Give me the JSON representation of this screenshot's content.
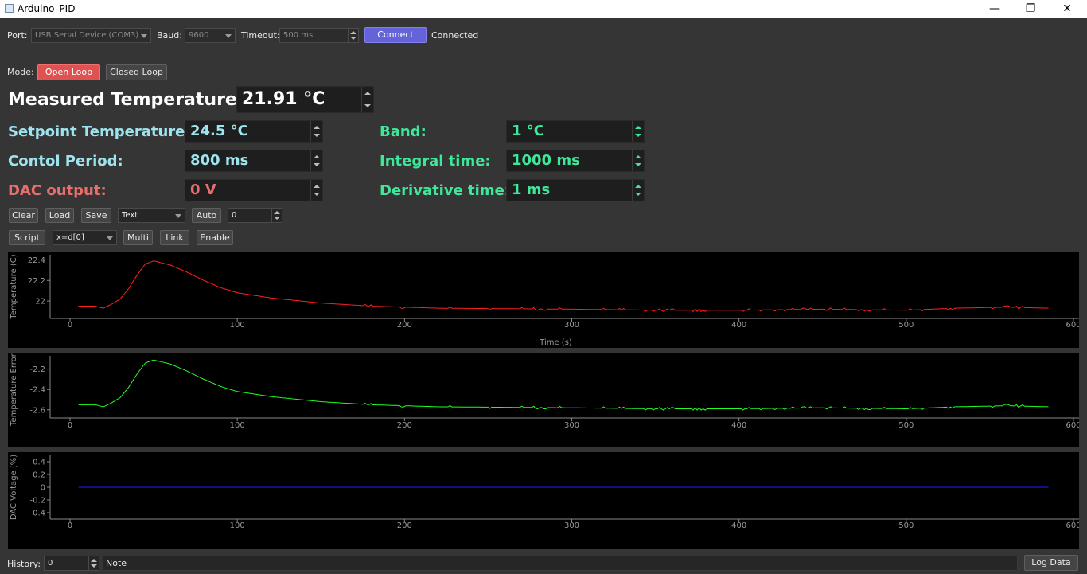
{
  "window": {
    "title": "Arduino_PID",
    "minimize": "—",
    "restore": "❐",
    "close": "✕"
  },
  "connection": {
    "port_label": "Port:",
    "port_value": "USB Serial Device (COM3)",
    "baud_label": "Baud:",
    "baud_value": "9600",
    "timeout_label": "Timeout:",
    "timeout_value": "500 ms",
    "connect_label": "Connect",
    "status": "Connected"
  },
  "mode": {
    "label": "Mode:",
    "open_loop": "Open Loop",
    "closed_loop": "Closed Loop"
  },
  "readouts": {
    "measured_label": "Measured Temperature:",
    "measured_value": "21.91 °C",
    "setpoint_label": "Setpoint Temperature:",
    "setpoint_value": "24.5 °C",
    "period_label": "Contol Period:",
    "period_value": "800 ms",
    "dac_label": "DAC output:",
    "dac_value": "0 V",
    "band_label": "Band:",
    "band_value": "1 °C",
    "integral_label": "Integral time:",
    "integral_value": "1000 ms",
    "derivative_label": "Derivative time:",
    "derivative_value": "1 ms"
  },
  "toolbar": {
    "clear": "Clear",
    "load": "Load",
    "save": "Save",
    "format": "Text",
    "auto": "Auto",
    "auto_value": "0",
    "script": "Script",
    "expression": "x=d[0]",
    "multi": "Multi",
    "link": "Link",
    "enable": "Enable"
  },
  "footer": {
    "history_label": "History:",
    "history_value": "0",
    "note": "Note",
    "log_data": "Log Data"
  },
  "colors": {
    "temperature": "#ff2020",
    "error": "#20ff20",
    "dac": "#2020ff",
    "connect": "#6464d8",
    "open_loop": "#e05252"
  },
  "chart_data": [
    {
      "type": "line",
      "ylabel": "Temperature (C)",
      "xlabel": "Time (s)",
      "xlim": [
        0,
        600
      ],
      "ylim": [
        21.83,
        22.45
      ],
      "x_ticks": [
        "0",
        "100",
        "200",
        "300",
        "400",
        "500",
        "600"
      ],
      "y_ticks": [
        "22.4",
        "22.2",
        "22"
      ],
      "y_tick_values": [
        22.4,
        22.2,
        22.0
      ],
      "color": "#ff2020",
      "x": [
        5,
        15,
        20,
        25,
        30,
        35,
        40,
        45,
        50,
        60,
        70,
        80,
        90,
        100,
        120,
        150,
        180,
        220,
        300,
        350,
        400,
        450,
        500,
        530,
        560,
        585
      ],
      "y": [
        21.95,
        21.95,
        21.93,
        21.97,
        22.02,
        22.12,
        22.25,
        22.36,
        22.39,
        22.35,
        22.28,
        22.2,
        22.13,
        22.08,
        22.03,
        21.98,
        21.95,
        21.93,
        21.92,
        21.91,
        21.91,
        21.92,
        21.91,
        21.93,
        21.94,
        21.93
      ]
    },
    {
      "type": "line",
      "ylabel": "Temperature Error (",
      "xlim": [
        0,
        600
      ],
      "ylim": [
        -2.68,
        -2.07
      ],
      "x_ticks": [
        "0",
        "100",
        "200",
        "300",
        "400",
        "500",
        "600"
      ],
      "y_ticks": [
        "-2.2",
        "-2.4",
        "-2.6"
      ],
      "y_tick_values": [
        -2.2,
        -2.4,
        -2.6
      ],
      "color": "#20ff20",
      "x": [
        5,
        15,
        20,
        25,
        30,
        35,
        40,
        45,
        50,
        60,
        70,
        80,
        90,
        100,
        120,
        150,
        180,
        220,
        300,
        350,
        400,
        450,
        500,
        530,
        560,
        585
      ],
      "y": [
        -2.55,
        -2.55,
        -2.57,
        -2.53,
        -2.48,
        -2.38,
        -2.25,
        -2.14,
        -2.11,
        -2.15,
        -2.22,
        -2.3,
        -2.37,
        -2.42,
        -2.47,
        -2.52,
        -2.55,
        -2.57,
        -2.58,
        -2.59,
        -2.59,
        -2.58,
        -2.59,
        -2.57,
        -2.56,
        -2.57
      ]
    },
    {
      "type": "line",
      "ylabel": "DAC Voltage (%)",
      "xlim": [
        0,
        600
      ],
      "ylim": [
        -0.5,
        0.5
      ],
      "x_ticks": [
        "0",
        "100",
        "200",
        "300",
        "400",
        "500",
        "600"
      ],
      "y_ticks": [
        "0.4",
        "0.2",
        "0",
        "-0.2",
        "-0.4"
      ],
      "y_tick_values": [
        0.4,
        0.2,
        0,
        -0.2,
        -0.4
      ],
      "color": "#2020ff",
      "x": [
        5,
        585
      ],
      "y": [
        0,
        0
      ]
    }
  ]
}
